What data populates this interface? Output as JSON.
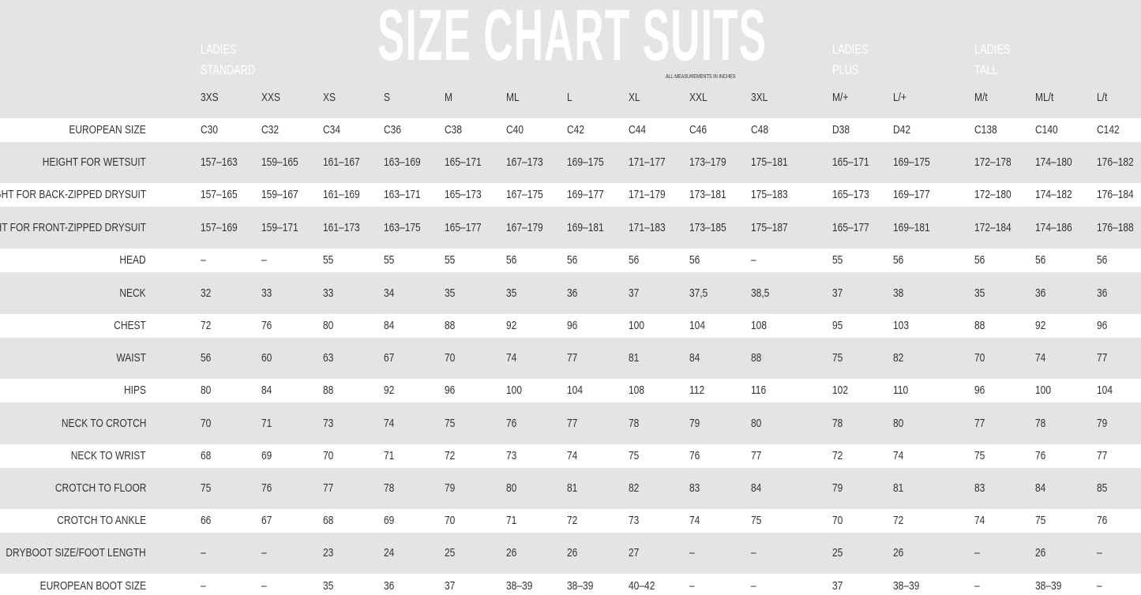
{
  "title": "SIZE CHART SUITS",
  "note": "ALL MEASUREMENTS IN INCHES",
  "colors": {
    "header_bg": "#e4e4e4",
    "stripe_bg": "#e4e4e4",
    "title": "#ffffff",
    "text": "#333333"
  },
  "groups": [
    {
      "line1": "LADIES",
      "line2": "STANDARD"
    },
    {
      "line1": "LADIES",
      "line2": "PLUS"
    },
    {
      "line1": "LADIES",
      "line2": "TALL"
    }
  ],
  "sizes": [
    "3XS",
    "XXS",
    "XS",
    "S",
    "M",
    "ML",
    "L",
    "XL",
    "XXL",
    "3XL",
    "M/+",
    "L/+",
    "M/t",
    "ML/t",
    "L/t"
  ],
  "rows": [
    {
      "label": "EUROPEAN SIZE",
      "values": [
        "C30",
        "C32",
        "C34",
        "C36",
        "C38",
        "C40",
        "C42",
        "C44",
        "C46",
        "C48",
        "D38",
        "D42",
        "C138",
        "C140",
        "C142"
      ]
    },
    {
      "label": "HEIGHT FOR WETSUIT",
      "values": [
        "157–163",
        "159–165",
        "161–167",
        "163–169",
        "165–171",
        "167–173",
        "169–175",
        "171–177",
        "173–179",
        "175–181",
        "165–171",
        "169–175",
        "172–178",
        "174–180",
        "176–182"
      ]
    },
    {
      "label": "HEIGHT FOR BACK-ZIPPED DRYSUIT",
      "values": [
        "157–165",
        "159–167",
        "161–169",
        "163–171",
        "165–173",
        "167–175",
        "169–177",
        "171–179",
        "173–181",
        "175–183",
        "165–173",
        "169–177",
        "172–180",
        "174–182",
        "176–184"
      ]
    },
    {
      "label": "HEIGHT FOR FRONT-ZIPPED DRYSUIT",
      "values": [
        "157–169",
        "159–171",
        "161–173",
        "163–175",
        "165–177",
        "167–179",
        "169–181",
        "171–183",
        "173–185",
        "175–187",
        "165–177",
        "169–181",
        "172–184",
        "174–186",
        "176–188"
      ]
    },
    {
      "label": "HEAD",
      "values": [
        "–",
        "–",
        "55",
        "55",
        "55",
        "56",
        "56",
        "56",
        "56",
        "–",
        "55",
        "56",
        "56",
        "56",
        "56"
      ]
    },
    {
      "label": "NECK",
      "values": [
        "32",
        "33",
        "33",
        "34",
        "35",
        "35",
        "36",
        "37",
        "37,5",
        "38,5",
        "37",
        "38",
        "35",
        "36",
        "36"
      ]
    },
    {
      "label": "CHEST",
      "values": [
        "72",
        "76",
        "80",
        "84",
        "88",
        "92",
        "96",
        "100",
        "104",
        "108",
        "95",
        "103",
        "88",
        "92",
        "96"
      ]
    },
    {
      "label": "WAIST",
      "values": [
        "56",
        "60",
        "63",
        "67",
        "70",
        "74",
        "77",
        "81",
        "84",
        "88",
        "75",
        "82",
        "70",
        "74",
        "77"
      ]
    },
    {
      "label": "HIPS",
      "values": [
        "80",
        "84",
        "88",
        "92",
        "96",
        "100",
        "104",
        "108",
        "112",
        "116",
        "102",
        "110",
        "96",
        "100",
        "104"
      ]
    },
    {
      "label": "NECK TO CROTCH",
      "values": [
        "70",
        "71",
        "73",
        "74",
        "75",
        "76",
        "77",
        "78",
        "79",
        "80",
        "78",
        "80",
        "77",
        "78",
        "79"
      ]
    },
    {
      "label": "NECK TO WRIST",
      "values": [
        "68",
        "69",
        "70",
        "71",
        "72",
        "73",
        "74",
        "75",
        "76",
        "77",
        "72",
        "74",
        "75",
        "76",
        "77"
      ]
    },
    {
      "label": "CROTCH TO FLOOR",
      "values": [
        "75",
        "76",
        "77",
        "78",
        "79",
        "80",
        "81",
        "82",
        "83",
        "84",
        "79",
        "81",
        "83",
        "84",
        "85"
      ]
    },
    {
      "label": "CROTCH TO ANKLE",
      "values": [
        "66",
        "67",
        "68",
        "69",
        "70",
        "71",
        "72",
        "73",
        "74",
        "75",
        "70",
        "72",
        "74",
        "75",
        "76"
      ]
    },
    {
      "label": "DRYBOOT SIZE/FOOT LENGTH",
      "values": [
        "–",
        "–",
        "23",
        "24",
        "25",
        "26",
        "26",
        "27",
        "–",
        "–",
        "25",
        "26",
        "–",
        "26",
        "–"
      ]
    },
    {
      "label": "EUROPEAN BOOT SIZE",
      "values": [
        "–",
        "–",
        "35",
        "36",
        "37",
        "38–39",
        "38–39",
        "40–42",
        "–",
        "–",
        "37",
        "38–39",
        "–",
        "38–39",
        "–"
      ]
    }
  ]
}
